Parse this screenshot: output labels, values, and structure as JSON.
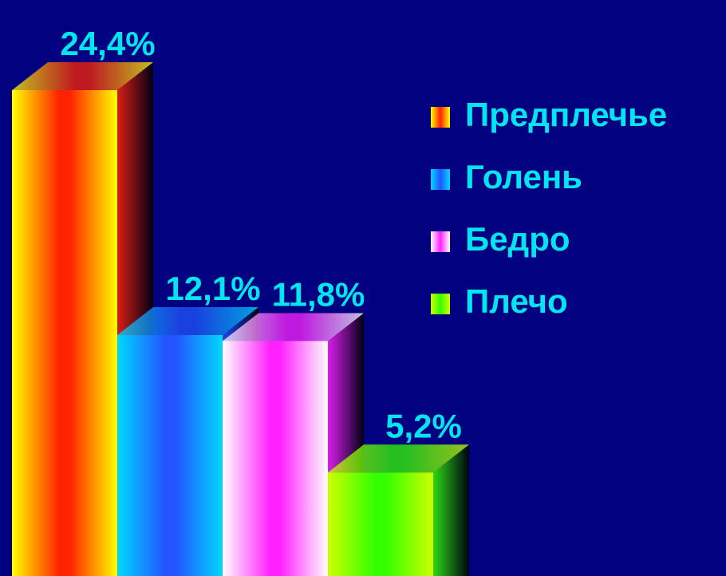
{
  "chart_data": {
    "type": "bar3d",
    "series": [
      {
        "name": "Предплечье",
        "color": "#ff2200",
        "values": [
          24.4
        ],
        "value_labels": [
          "24,4%"
        ]
      },
      {
        "name": "Голень",
        "color": "#2255ff",
        "values": [
          12.1
        ],
        "value_labels": [
          "12,1%"
        ]
      },
      {
        "name": "Бедро",
        "color": "#ff22ff",
        "values": [
          11.8
        ],
        "value_labels": [
          "11,8%"
        ]
      },
      {
        "name": "Плечо",
        "color": "#33ff00",
        "values": [
          5.2
        ],
        "value_labels": [
          "5,2%"
        ]
      }
    ],
    "legend": "right"
  }
}
